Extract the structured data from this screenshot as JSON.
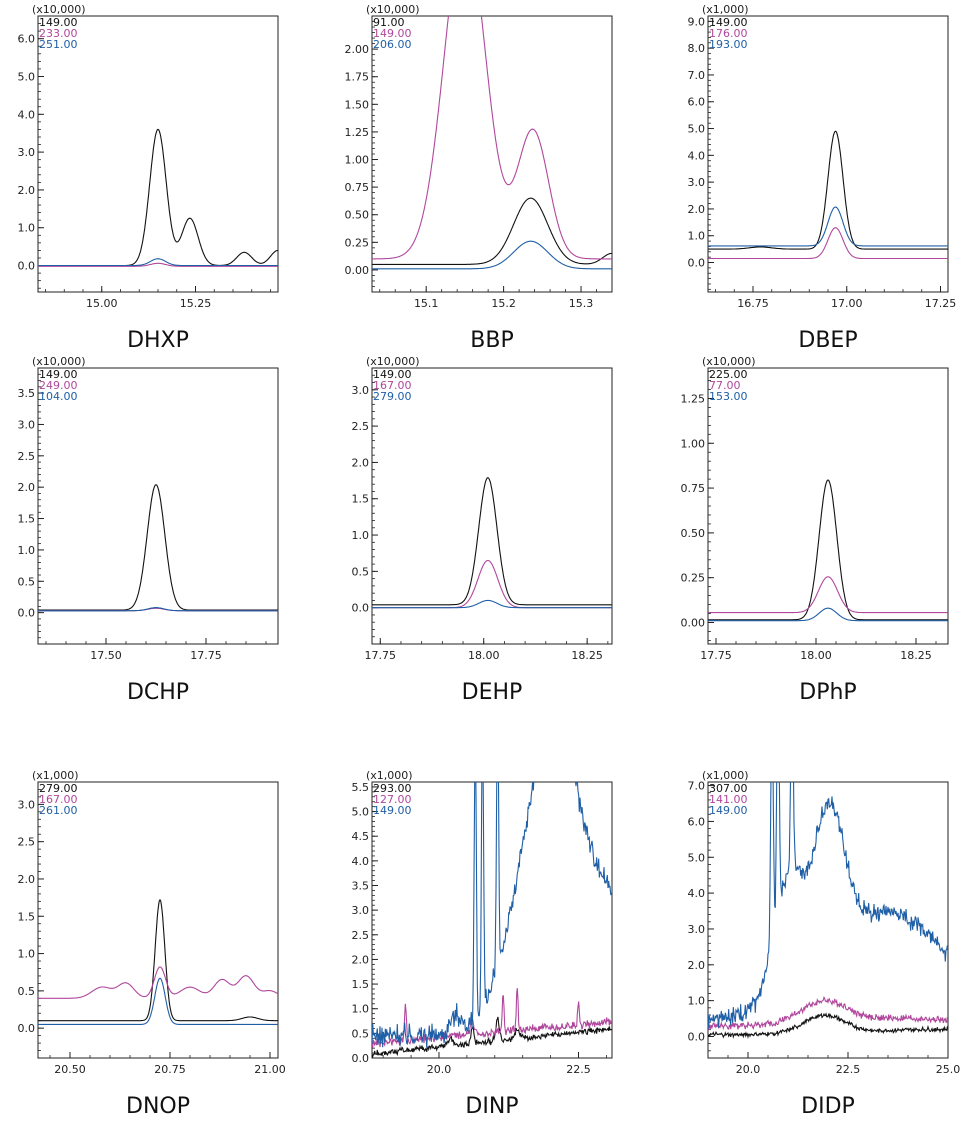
{
  "colors": {
    "black": "#111111",
    "magenta": "#b0479c",
    "blue": "#1f5fa6"
  },
  "chart_data": [
    {
      "type": "line",
      "caption": "DHXP",
      "scale_label": "(x10,000)",
      "xlim": [
        14.83,
        15.47
      ],
      "ylim": [
        -0.7,
        6.6
      ],
      "xticks": [
        15.0,
        15.25
      ],
      "xtick_labels": [
        "15.00",
        "15.25"
      ],
      "yticks": [
        0,
        1,
        2,
        3,
        4,
        5,
        6
      ],
      "ytick_labels": [
        "0.0",
        "1.0",
        "2.0",
        "3.0",
        "4.0",
        "5.0",
        "6.0"
      ],
      "series": [
        {
          "name": "149.00",
          "color": "black",
          "baseline": 0.0,
          "peaks": [
            [
              15.15,
              3.6,
              0.022
            ],
            [
              15.235,
              1.25,
              0.022
            ],
            [
              15.38,
              0.35,
              0.02
            ],
            [
              15.47,
              0.4,
              0.02
            ]
          ]
        },
        {
          "name": "233.00",
          "color": "magenta",
          "baseline": -0.02,
          "peaks": [
            [
              15.15,
              0.08,
              0.02
            ]
          ]
        },
        {
          "name": "251.00",
          "color": "blue",
          "baseline": 0.0,
          "peaks": [
            [
              15.15,
              0.18,
              0.02
            ]
          ]
        }
      ]
    },
    {
      "type": "line",
      "caption": "BBP",
      "scale_label": "(x10,000)",
      "xlim": [
        15.03,
        15.34
      ],
      "ylim": [
        -0.2,
        2.3
      ],
      "xticks": [
        15.1,
        15.2,
        15.3
      ],
      "xtick_labels": [
        "15.1",
        "15.2",
        "15.3"
      ],
      "yticks": [
        0,
        0.25,
        0.5,
        0.75,
        1.0,
        1.25,
        1.5,
        1.75,
        2.0
      ],
      "ytick_labels": [
        "0.00",
        "0.25",
        "0.50",
        "0.75",
        "1.00",
        "1.25",
        "1.50",
        "1.75",
        "2.00"
      ],
      "series": [
        {
          "name": "91.00",
          "color": "black",
          "baseline": 0.05,
          "peaks": [
            [
              15.235,
              0.6,
              0.022
            ],
            [
              15.34,
              0.1,
              0.012
            ]
          ]
        },
        {
          "name": "149.00",
          "color": "magenta",
          "baseline": 0.1,
          "peaks": [
            [
              15.15,
              3.0,
              0.027
            ],
            [
              15.238,
              1.16,
              0.02
            ]
          ]
        },
        {
          "name": "206.00",
          "color": "blue",
          "baseline": 0.01,
          "peaks": [
            [
              15.235,
              0.25,
              0.022
            ]
          ]
        }
      ]
    },
    {
      "type": "line",
      "caption": "DBEP",
      "scale_label": "(x1,000)",
      "xlim": [
        16.63,
        17.27
      ],
      "ylim": [
        -1.1,
        9.2
      ],
      "xticks": [
        16.75,
        17.0,
        17.25
      ],
      "xtick_labels": [
        "16.75",
        "17.00",
        "17.25"
      ],
      "yticks": [
        0,
        1,
        2,
        3,
        4,
        5,
        6,
        7,
        8,
        9
      ],
      "ytick_labels": [
        "0.0",
        "1.0",
        "2.0",
        "3.0",
        "4.0",
        "5.0",
        "6.0",
        "7.0",
        "8.0",
        "9.0"
      ],
      "series": [
        {
          "name": "149.00",
          "color": "black",
          "baseline": 0.5,
          "peaks": [
            [
              16.97,
              4.4,
              0.02
            ],
            [
              16.77,
              0.08,
              0.03
            ]
          ]
        },
        {
          "name": "176.00",
          "color": "magenta",
          "baseline": 0.15,
          "peaks": [
            [
              16.97,
              1.15,
              0.02
            ]
          ]
        },
        {
          "name": "193.00",
          "color": "blue",
          "baseline": 0.62,
          "peaks": [
            [
              16.97,
              1.45,
              0.02
            ]
          ]
        }
      ]
    },
    {
      "type": "line",
      "caption": "DCHP",
      "scale_label": "(x10,000)",
      "xlim": [
        17.33,
        17.93
      ],
      "ylim": [
        -0.5,
        3.9
      ],
      "xticks": [
        17.5,
        17.75
      ],
      "xtick_labels": [
        "17.50",
        "17.75"
      ],
      "yticks": [
        0,
        0.5,
        1.0,
        1.5,
        2.0,
        2.5,
        3.0,
        3.5
      ],
      "ytick_labels": [
        "0.0",
        "0.5",
        "1.0",
        "1.5",
        "2.0",
        "2.5",
        "3.0",
        "3.5"
      ],
      "series": [
        {
          "name": "149.00",
          "color": "black",
          "baseline": 0.04,
          "peaks": [
            [
              17.625,
              2.0,
              0.022
            ]
          ]
        },
        {
          "name": "249.00",
          "color": "magenta",
          "baseline": 0.03,
          "peaks": [
            [
              17.625,
              0.04,
              0.02
            ]
          ]
        },
        {
          "name": "104.00",
          "color": "blue",
          "baseline": 0.03,
          "peaks": [
            [
              17.625,
              0.05,
              0.02
            ]
          ]
        }
      ]
    },
    {
      "type": "line",
      "caption": "DEHP",
      "scale_label": "(x10,000)",
      "xlim": [
        17.73,
        18.31
      ],
      "ylim": [
        -0.5,
        3.3
      ],
      "xticks": [
        17.75,
        18.0,
        18.25
      ],
      "xtick_labels": [
        "17.75",
        "18.00",
        "18.25"
      ],
      "yticks": [
        0,
        0.5,
        1.0,
        1.5,
        2.0,
        2.5,
        3.0
      ],
      "ytick_labels": [
        "0.0",
        "0.5",
        "1.0",
        "1.5",
        "2.0",
        "2.5",
        "3.0"
      ],
      "series": [
        {
          "name": "149.00",
          "color": "black",
          "baseline": 0.04,
          "peaks": [
            [
              18.01,
              1.75,
              0.022
            ]
          ]
        },
        {
          "name": "167.00",
          "color": "magenta",
          "baseline": 0.0,
          "peaks": [
            [
              18.01,
              0.65,
              0.024
            ]
          ]
        },
        {
          "name": "279.00",
          "color": "blue",
          "baseline": 0.0,
          "peaks": [
            [
              18.01,
              0.1,
              0.022
            ]
          ]
        }
      ]
    },
    {
      "type": "line",
      "caption": "DPhP",
      "scale_label": "(x10,000)",
      "xlim": [
        17.73,
        18.33
      ],
      "ylim": [
        -0.12,
        1.42
      ],
      "xticks": [
        17.75,
        18.0,
        18.25
      ],
      "xtick_labels": [
        "17.75",
        "18.00",
        "18.25"
      ],
      "yticks": [
        0,
        0.25,
        0.5,
        0.75,
        1.0,
        1.25
      ],
      "ytick_labels": [
        "0.00",
        "0.25",
        "0.50",
        "0.75",
        "1.00",
        "1.25"
      ],
      "series": [
        {
          "name": "225.00",
          "color": "black",
          "baseline": 0.015,
          "peaks": [
            [
              18.03,
              0.78,
              0.022
            ]
          ]
        },
        {
          "name": "77.00",
          "color": "magenta",
          "baseline": 0.055,
          "peaks": [
            [
              18.03,
              0.2,
              0.024
            ]
          ]
        },
        {
          "name": "153.00",
          "color": "blue",
          "baseline": 0.01,
          "peaks": [
            [
              18.03,
              0.07,
              0.022
            ]
          ]
        }
      ]
    },
    {
      "type": "line",
      "caption": "DNOP",
      "scale_label": "(x1,000)",
      "xlim": [
        20.42,
        21.02
      ],
      "ylim": [
        -0.4,
        3.3
      ],
      "xticks": [
        20.5,
        20.75,
        21.0
      ],
      "xtick_labels": [
        "20.50",
        "20.75",
        "21.00"
      ],
      "yticks": [
        0,
        0.5,
        1.0,
        1.5,
        2.0,
        2.5,
        3.0
      ],
      "ytick_labels": [
        "0.0",
        "0.5",
        "1.0",
        "1.5",
        "2.0",
        "2.5",
        "3.0"
      ],
      "series": [
        {
          "name": "279.00",
          "color": "black",
          "baseline": 0.1,
          "peaks": [
            [
              20.725,
              1.62,
              0.012
            ],
            [
              20.95,
              0.05,
              0.02
            ]
          ]
        },
        {
          "name": "167.00",
          "color": "magenta",
          "baseline": 0.4,
          "peaks": [
            [
              20.725,
              0.42,
              0.014
            ],
            [
              20.58,
              0.15,
              0.025
            ],
            [
              20.64,
              0.2,
              0.02
            ],
            [
              20.8,
              0.15,
              0.025
            ],
            [
              20.88,
              0.25,
              0.02
            ],
            [
              20.94,
              0.3,
              0.02
            ],
            [
              21.0,
              0.1,
              0.02
            ]
          ]
        },
        {
          "name": "261.00",
          "color": "blue",
          "baseline": 0.05,
          "peaks": [
            [
              20.725,
              0.62,
              0.013
            ]
          ]
        }
      ]
    },
    {
      "type": "line",
      "caption": "DINP",
      "scale_label": "(x1,000)",
      "xlim": [
        18.8,
        23.1
      ],
      "ylim": [
        0.0,
        5.6
      ],
      "xticks": [
        20.0,
        22.5
      ],
      "xtick_labels": [
        "20.0",
        "22.5"
      ],
      "yticks": [
        0,
        0.5,
        1.0,
        1.5,
        2.0,
        2.5,
        3.0,
        3.5,
        4.0,
        4.5,
        5.0,
        5.5
      ],
      "ytick_labels": [
        "0.0",
        "0.5",
        "1.0",
        "1.5",
        "2.0",
        "2.5",
        "3.0",
        "3.5",
        "4.0",
        "4.5",
        "5.0",
        "5.5"
      ],
      "series": [
        {
          "name": "293.00",
          "color": "black",
          "baseline": 0.08,
          "slope": 0.12,
          "noise": 0.05,
          "peaks": [
            [
              20.2,
              0.15,
              0.05
            ],
            [
              20.6,
              0.3,
              0.03
            ],
            [
              21.05,
              0.45,
              0.03
            ],
            [
              21.4,
              0.2,
              0.04
            ]
          ]
        },
        {
          "name": "127.00",
          "color": "magenta",
          "baseline": 0.3,
          "slope": 0.1,
          "noise": 0.07,
          "peaks": [
            [
              19.4,
              0.75,
              0.015
            ],
            [
              20.6,
              0.3,
              0.03
            ],
            [
              21.15,
              0.8,
              0.015
            ],
            [
              21.4,
              0.9,
              0.015
            ],
            [
              22.5,
              0.5,
              0.015
            ]
          ]
        },
        {
          "name": "149.00",
          "color": "blue",
          "baseline": 0.45,
          "slope": 0.0,
          "noise": 0.18,
          "peaks": [
            [
              20.3,
              0.4,
              0.1
            ],
            [
              20.65,
              6.0,
              0.018
            ],
            [
              20.78,
              6.0,
              0.018
            ],
            [
              21.05,
              5.5,
              0.018
            ],
            [
              21.6,
              2.8,
              0.45
            ],
            [
              22.1,
              4.0,
              0.35
            ],
            [
              22.9,
              3.0,
              0.6
            ]
          ]
        }
      ]
    },
    {
      "type": "line",
      "caption": "DIDP",
      "scale_label": "(x1,000)",
      "xlim": [
        19.0,
        25.0
      ],
      "ylim": [
        -0.6,
        7.1
      ],
      "xticks": [
        20.0,
        22.5,
        25.0
      ],
      "xtick_labels": [
        "20.0",
        "22.5",
        "25.0"
      ],
      "yticks": [
        0,
        1,
        2,
        3,
        4,
        5,
        6,
        7
      ],
      "ytick_labels": [
        "0.0",
        "1.0",
        "2.0",
        "3.0",
        "4.0",
        "5.0",
        "6.0",
        "7.0"
      ],
      "series": [
        {
          "name": "307.00",
          "color": "black",
          "baseline": 0.05,
          "slope": 0.0,
          "noise": 0.05,
          "peaks": [
            [
              21.9,
              0.5,
              0.5
            ],
            [
              25.0,
              0.15,
              2.0
            ]
          ]
        },
        {
          "name": "141.00",
          "color": "magenta",
          "baseline": 0.3,
          "slope": 0.0,
          "noise": 0.08,
          "peaks": [
            [
              21.9,
              0.65,
              0.6
            ],
            [
              24.0,
              0.2,
              1.2
            ]
          ]
        },
        {
          "name": "149.00",
          "color": "blue",
          "baseline": 0.45,
          "slope": 0.0,
          "noise": 0.2,
          "peaks": [
            [
              20.6,
              7.0,
              0.03
            ],
            [
              20.75,
              7.0,
              0.03
            ],
            [
              21.1,
              5.5,
              0.03
            ],
            [
              21.0,
              3.2,
              0.35
            ],
            [
              22.0,
              4.2,
              0.4
            ],
            [
              23.5,
              3.0,
              1.5
            ]
          ]
        }
      ]
    }
  ]
}
